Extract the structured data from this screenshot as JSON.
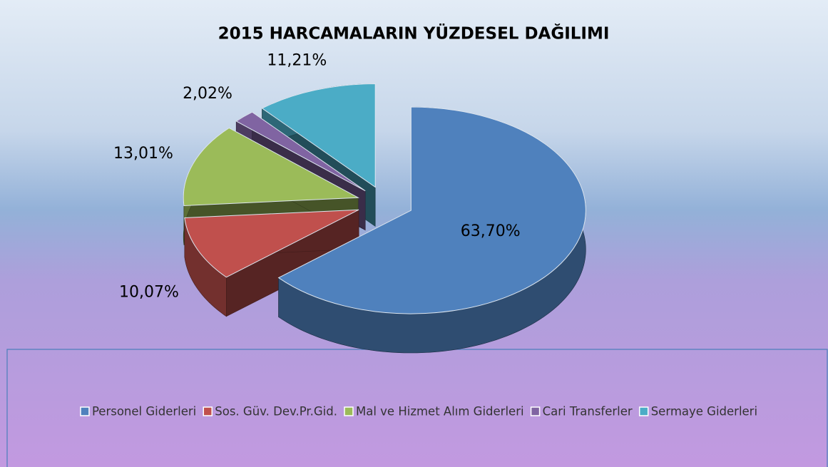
{
  "chart_data": {
    "type": "pie",
    "title": "2015 HARCAMALARIN YÜZDESEL DAĞILIMI",
    "categories": [
      "Personel Giderleri",
      "Sos. Güv. Dev.Pr.Gid.",
      "Mal ve Hizmet Alım Giderleri",
      "Cari Transferler",
      "Sermaye Giderleri"
    ],
    "values": [
      63.7,
      10.07,
      13.01,
      2.02,
      11.21
    ],
    "value_labels": [
      "63,70%",
      "10,07%",
      "13,01%",
      "2,02%",
      "11,21%"
    ],
    "colors": [
      "#4f81bd",
      "#c0504d",
      "#9bbb59",
      "#8064a2",
      "#4bacc6"
    ],
    "legend": "bottom"
  }
}
